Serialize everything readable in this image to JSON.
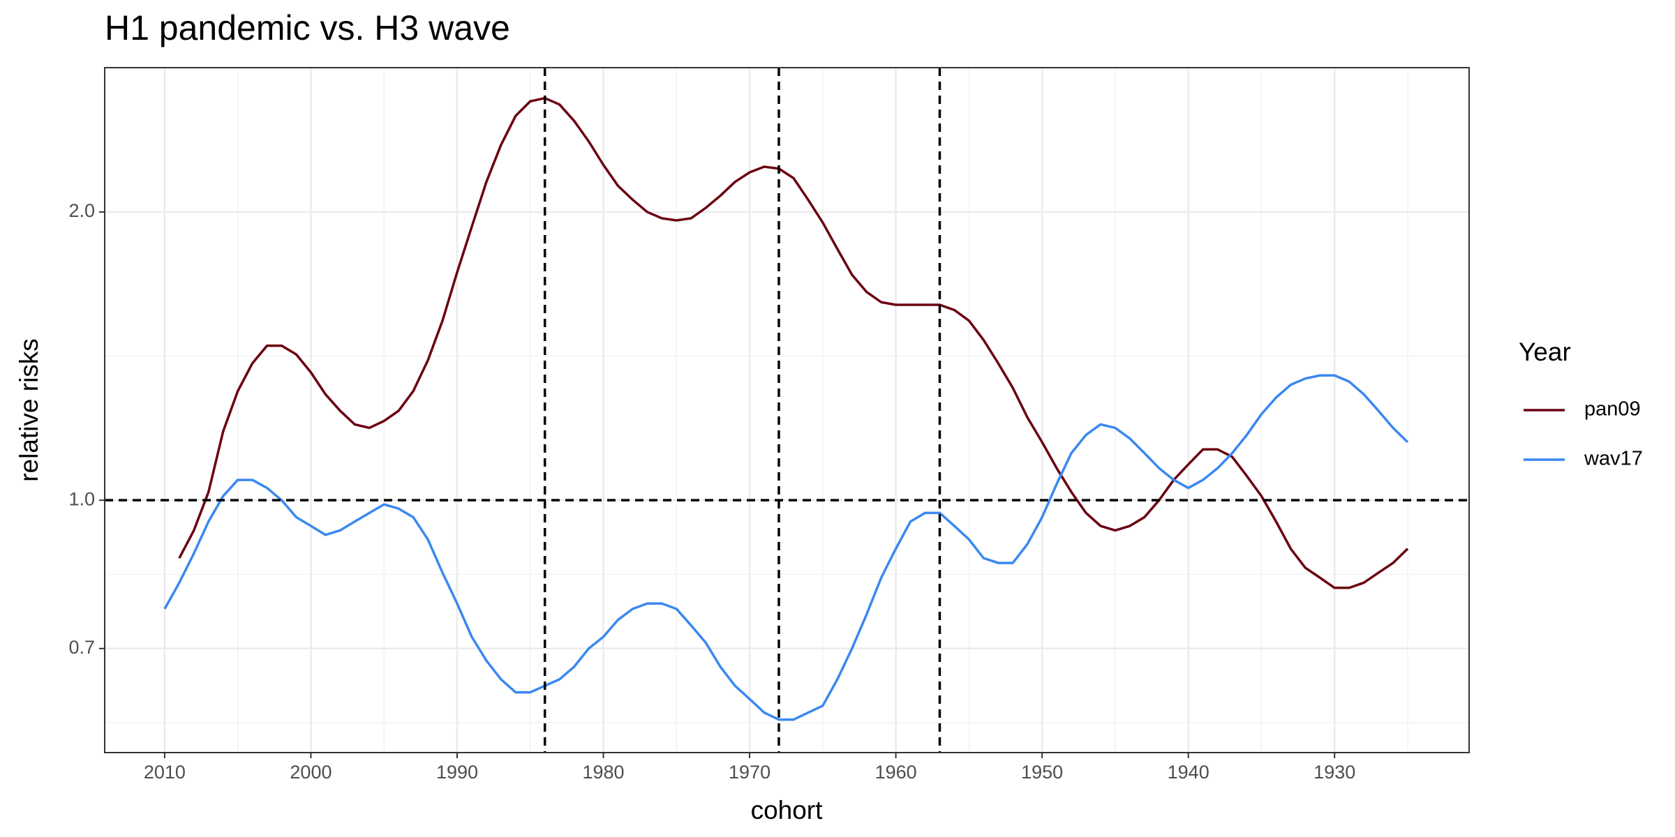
{
  "chart_data": {
    "type": "line",
    "title": "H1 pandemic vs. H3 wave",
    "x_label": "cohort",
    "y_label": "relative risks",
    "legend_title": "Year",
    "legend_position": "right",
    "log_y": true,
    "grid": true,
    "xlim": [
      2014.1,
      1920.8
    ],
    "xticks": [
      2010,
      2000,
      1990,
      1980,
      1970,
      1960,
      1950,
      1940,
      1930
    ],
    "ylim": [
      0.545,
      2.83
    ],
    "yticks": [
      {
        "value": 0.7,
        "label": "0.7"
      },
      {
        "value": 1,
        "label": "1.0"
      },
      {
        "value": 2,
        "label": "2.0"
      }
    ],
    "vlines": [
      1984,
      1968,
      1957
    ],
    "hline": 1,
    "x": [
      2010,
      2009,
      2008,
      2007,
      2006,
      2005,
      2004,
      2003,
      2002,
      2001,
      2000,
      1999,
      1998,
      1997,
      1996,
      1995,
      1994,
      1993,
      1992,
      1991,
      1990,
      1989,
      1988,
      1987,
      1986,
      1985,
      1984,
      1983,
      1982,
      1981,
      1980,
      1979,
      1978,
      1977,
      1976,
      1975,
      1974,
      1973,
      1972,
      1971,
      1970,
      1969,
      1968,
      1967,
      1966,
      1965,
      1964,
      1963,
      1962,
      1961,
      1960,
      1959,
      1958,
      1957,
      1956,
      1955,
      1954,
      1953,
      1952,
      1951,
      1950,
      1949,
      1948,
      1947,
      1946,
      1945,
      1944,
      1943,
      1942,
      1941,
      1940,
      1939,
      1938,
      1937,
      1936,
      1935,
      1934,
      1933,
      1932,
      1931,
      1930,
      1929,
      1928,
      1927,
      1926,
      1925
    ],
    "series": [
      {
        "name": "pan09",
        "color": "#6b0011",
        "values": [
          null,
          0.87,
          0.93,
          1.02,
          1.18,
          1.3,
          1.39,
          1.45,
          1.45,
          1.42,
          1.36,
          1.29,
          1.24,
          1.2,
          1.19,
          1.21,
          1.24,
          1.3,
          1.4,
          1.54,
          1.73,
          1.93,
          2.15,
          2.35,
          2.52,
          2.61,
          2.63,
          2.59,
          2.49,
          2.37,
          2.24,
          2.13,
          2.06,
          2.0,
          1.97,
          1.96,
          1.97,
          2.02,
          2.08,
          2.15,
          2.2,
          2.23,
          2.22,
          2.17,
          2.06,
          1.95,
          1.83,
          1.72,
          1.65,
          1.61,
          1.6,
          1.6,
          1.6,
          1.6,
          1.58,
          1.54,
          1.47,
          1.39,
          1.31,
          1.22,
          1.15,
          1.08,
          1.02,
          0.97,
          0.94,
          0.93,
          0.94,
          0.96,
          1.0,
          1.05,
          1.09,
          1.13,
          1.13,
          1.11,
          1.06,
          1.01,
          0.95,
          0.89,
          0.85,
          0.83,
          0.81,
          0.81,
          0.82,
          0.84,
          0.86,
          0.89
        ]
      },
      {
        "name": "wav17",
        "color": "#3a88f0",
        "values": [
          0.77,
          0.82,
          0.88,
          0.95,
          1.01,
          1.05,
          1.05,
          1.03,
          1.0,
          0.96,
          0.94,
          0.92,
          0.93,
          0.95,
          0.97,
          0.99,
          0.98,
          0.96,
          0.91,
          0.84,
          0.78,
          0.72,
          0.68,
          0.65,
          0.63,
          0.63,
          0.64,
          0.65,
          0.67,
          0.7,
          0.72,
          0.75,
          0.77,
          0.78,
          0.78,
          0.77,
          0.74,
          0.71,
          0.67,
          0.64,
          0.62,
          0.6,
          0.59,
          0.59,
          0.6,
          0.61,
          0.65,
          0.7,
          0.76,
          0.83,
          0.89,
          0.95,
          0.97,
          0.97,
          0.94,
          0.91,
          0.87,
          0.86,
          0.86,
          0.9,
          0.96,
          1.04,
          1.12,
          1.17,
          1.2,
          1.19,
          1.16,
          1.12,
          1.08,
          1.05,
          1.03,
          1.05,
          1.08,
          1.12,
          1.17,
          1.23,
          1.28,
          1.32,
          1.34,
          1.35,
          1.35,
          1.33,
          1.29,
          1.24,
          1.19,
          1.15
        ]
      }
    ]
  }
}
